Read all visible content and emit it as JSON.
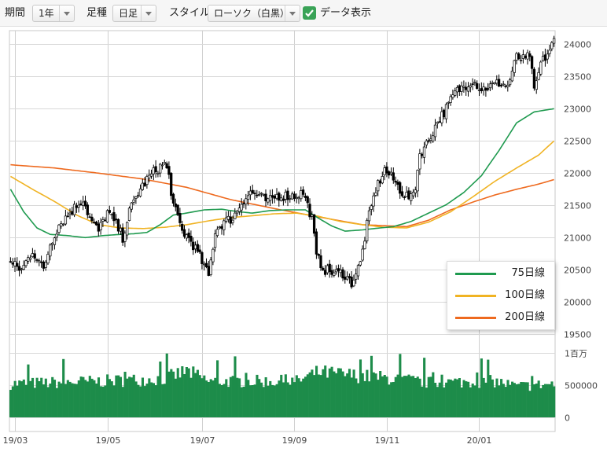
{
  "toolbar": {
    "period_label": "期間",
    "period_value": "1年",
    "bar_label": "足種",
    "bar_value": "日足",
    "style_label": "スタイル",
    "style_value": "ローソク（白黒）",
    "data_display_label": "データ表示",
    "data_display_checked": true
  },
  "chart_data": {
    "type": "candlestick",
    "x_ticks": [
      "19/03",
      "19/05",
      "19/07",
      "19/09",
      "19/11",
      "20/01"
    ],
    "price_ticks": [
      24000,
      23500,
      23000,
      22500,
      22000,
      21500,
      21000,
      20500,
      20000,
      19500
    ],
    "price_ylim": [
      19150,
      24150
    ],
    "volume_ticks": [
      "1百万",
      "500000",
      "0"
    ],
    "volume_ylim": [
      0,
      1000000
    ],
    "grid": true,
    "legend": {
      "placement": "bottom-right",
      "entries": [
        {
          "label": "75日線",
          "color": "#1f9a4f"
        },
        {
          "label": "100日線",
          "color": "#f0b323"
        },
        {
          "label": "200日線",
          "color": "#ee6a1f"
        }
      ]
    },
    "close_anchors": [
      [
        0,
        20600
      ],
      [
        5,
        20500
      ],
      [
        10,
        20800
      ],
      [
        15,
        20500
      ],
      [
        18,
        20900
      ],
      [
        22,
        21200
      ],
      [
        26,
        21350
      ],
      [
        30,
        21500
      ],
      [
        33,
        21600
      ],
      [
        36,
        21300
      ],
      [
        40,
        21100
      ],
      [
        44,
        21400
      ],
      [
        48,
        21200
      ],
      [
        51,
        21000
      ],
      [
        54,
        21400
      ],
      [
        58,
        21700
      ],
      [
        62,
        21900
      ],
      [
        66,
        22050
      ],
      [
        70,
        22150
      ],
      [
        72,
        21950
      ],
      [
        74,
        21500
      ],
      [
        78,
        21100
      ],
      [
        82,
        20950
      ],
      [
        86,
        20700
      ],
      [
        90,
        20400
      ],
      [
        93,
        21100
      ],
      [
        97,
        21250
      ],
      [
        101,
        21300
      ],
      [
        105,
        21550
      ],
      [
        109,
        21700
      ],
      [
        113,
        21650
      ],
      [
        117,
        21550
      ],
      [
        121,
        21650
      ],
      [
        125,
        21650
      ],
      [
        129,
        21650
      ],
      [
        133,
        21700
      ],
      [
        137,
        21300
      ],
      [
        139,
        20700
      ],
      [
        143,
        20500
      ],
      [
        147,
        20450
      ],
      [
        151,
        20450
      ],
      [
        155,
        20300
      ],
      [
        159,
        20600
      ],
      [
        162,
        21200
      ],
      [
        166,
        21750
      ],
      [
        170,
        22050
      ],
      [
        174,
        21900
      ],
      [
        178,
        21700
      ],
      [
        182,
        21600
      ],
      [
        184,
        21800
      ],
      [
        186,
        22300
      ],
      [
        190,
        22500
      ],
      [
        194,
        22800
      ],
      [
        198,
        23000
      ],
      [
        202,
        23250
      ],
      [
        206,
        23350
      ],
      [
        210,
        23450
      ],
      [
        214,
        23300
      ],
      [
        218,
        23350
      ],
      [
        222,
        23400
      ],
      [
        226,
        23350
      ],
      [
        230,
        23800
      ],
      [
        234,
        23750
      ],
      [
        236,
        23850
      ],
      [
        238,
        23250
      ],
      [
        241,
        23700
      ],
      [
        244,
        23850
      ],
      [
        247,
        24050
      ]
    ],
    "ma75_anchors": [
      [
        0,
        21750
      ],
      [
        6,
        21400
      ],
      [
        12,
        21150
      ],
      [
        18,
        21050
      ],
      [
        26,
        21030
      ],
      [
        34,
        21000
      ],
      [
        42,
        21030
      ],
      [
        50,
        21050
      ],
      [
        56,
        21060
      ],
      [
        62,
        21080
      ],
      [
        68,
        21200
      ],
      [
        74,
        21350
      ],
      [
        80,
        21380
      ],
      [
        88,
        21430
      ],
      [
        96,
        21440
      ],
      [
        104,
        21400
      ],
      [
        110,
        21380
      ],
      [
        118,
        21420
      ],
      [
        126,
        21430
      ],
      [
        134,
        21430
      ],
      [
        140,
        21300
      ],
      [
        146,
        21180
      ],
      [
        152,
        21100
      ],
      [
        160,
        21120
      ],
      [
        168,
        21150
      ],
      [
        174,
        21170
      ],
      [
        182,
        21250
      ],
      [
        190,
        21380
      ],
      [
        198,
        21510
      ],
      [
        206,
        21700
      ],
      [
        214,
        21960
      ],
      [
        222,
        22350
      ],
      [
        230,
        22780
      ],
      [
        238,
        22950
      ],
      [
        247,
        23000
      ]
    ],
    "ma100_anchors": [
      [
        0,
        21950
      ],
      [
        10,
        21750
      ],
      [
        20,
        21560
      ],
      [
        30,
        21350
      ],
      [
        40,
        21200
      ],
      [
        50,
        21150
      ],
      [
        60,
        21140
      ],
      [
        70,
        21160
      ],
      [
        80,
        21200
      ],
      [
        90,
        21260
      ],
      [
        100,
        21310
      ],
      [
        110,
        21340
      ],
      [
        120,
        21370
      ],
      [
        130,
        21380
      ],
      [
        140,
        21330
      ],
      [
        150,
        21250
      ],
      [
        160,
        21200
      ],
      [
        170,
        21160
      ],
      [
        180,
        21150
      ],
      [
        190,
        21240
      ],
      [
        200,
        21400
      ],
      [
        210,
        21630
      ],
      [
        220,
        21870
      ],
      [
        230,
        22080
      ],
      [
        240,
        22280
      ],
      [
        247,
        22500
      ]
    ],
    "ma200_anchors": [
      [
        0,
        22130
      ],
      [
        20,
        22080
      ],
      [
        40,
        22000
      ],
      [
        60,
        21910
      ],
      [
        80,
        21780
      ],
      [
        100,
        21590
      ],
      [
        120,
        21450
      ],
      [
        140,
        21320
      ],
      [
        160,
        21200
      ],
      [
        180,
        21170
      ],
      [
        190,
        21270
      ],
      [
        200,
        21430
      ],
      [
        210,
        21550
      ],
      [
        220,
        21660
      ],
      [
        230,
        21750
      ],
      [
        240,
        21830
      ],
      [
        247,
        21900
      ]
    ],
    "volume_levels": [
      [
        0,
        520000
      ],
      [
        40,
        560000
      ],
      [
        70,
        600000
      ],
      [
        80,
        720000
      ],
      [
        90,
        560000
      ],
      [
        130,
        560000
      ],
      [
        140,
        700000
      ],
      [
        160,
        640000
      ],
      [
        175,
        600000
      ],
      [
        190,
        540000
      ],
      [
        220,
        560000
      ],
      [
        230,
        480000
      ],
      [
        247,
        520000
      ]
    ]
  }
}
